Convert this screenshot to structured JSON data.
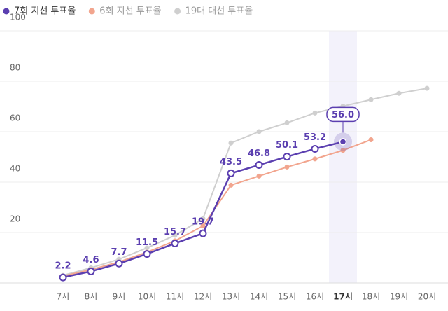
{
  "chart_data": {
    "type": "line",
    "categories": [
      "7시",
      "8시",
      "9시",
      "10시",
      "11시",
      "12시",
      "13시",
      "14시",
      "15시",
      "16시",
      "17시",
      "18시",
      "19시",
      "20시"
    ],
    "series": [
      {
        "name": "7회 지선 투표율",
        "color": "#5b3fb0",
        "values": [
          2.2,
          4.6,
          7.7,
          11.5,
          15.7,
          19.7,
          43.5,
          46.8,
          50.1,
          53.2,
          56.0,
          null,
          null,
          null
        ],
        "value_labels": [
          "2.2",
          "4.6",
          "7.7",
          "11.5",
          "15.7",
          "19.7",
          "43.5",
          "46.8",
          "50.1",
          "53.2",
          "56.0",
          null,
          null,
          null
        ]
      },
      {
        "name": "6회 지선 투표율",
        "color": "#f2a58e",
        "values": [
          2.7,
          5.3,
          8.3,
          12.2,
          16.7,
          22.6,
          38.8,
          42.4,
          46.0,
          49.2,
          52.6,
          56.8,
          null,
          null
        ]
      },
      {
        "name": "19대 대선 투표율",
        "color": "#cfcfcf",
        "values": [
          3.0,
          6.0,
          9.4,
          13.9,
          18.9,
          25.5,
          55.5,
          60.0,
          63.5,
          67.4,
          70.1,
          72.7,
          75.2,
          77.2
        ]
      }
    ],
    "ylim": [
      0,
      100
    ],
    "yticks": [
      20,
      40,
      60,
      80,
      100
    ],
    "grid": true,
    "highlight_index": 10
  }
}
